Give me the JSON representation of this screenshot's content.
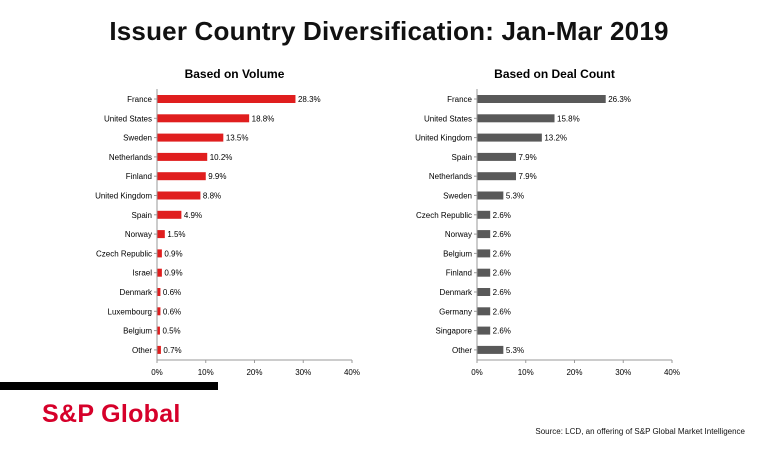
{
  "title": "Issuer Country Diversification: Jan-Mar 2019",
  "colors": {
    "volume_bar": "#e01e1e",
    "deal_bar": "#595959",
    "brand": "#d6002a"
  },
  "brand": {
    "name": "S&P Global"
  },
  "source": "Source: LCD, an offering of S&P Global Market Intelligence",
  "chart_data": [
    {
      "type": "bar",
      "orientation": "horizontal",
      "title": "Based on Volume",
      "categories": [
        "France",
        "United States",
        "Sweden",
        "Netherlands",
        "Finland",
        "United Kingdom",
        "Spain",
        "Norway",
        "Czech Republic",
        "Israel",
        "Denmark",
        "Luxembourg",
        "Belgium",
        "Other"
      ],
      "values": [
        28.3,
        18.8,
        13.5,
        10.2,
        9.9,
        8.8,
        4.9,
        1.5,
        0.9,
        0.9,
        0.6,
        0.6,
        0.5,
        0.7
      ],
      "value_labels": [
        "28.3%",
        "18.8%",
        "13.5%",
        "10.2%",
        "9.9%",
        "8.8%",
        "4.9%",
        "1.5%",
        "0.9%",
        "0.9%",
        "0.6%",
        "0.6%",
        "0.5%",
        "0.7%"
      ],
      "xlim": [
        0,
        40
      ],
      "xticks": [
        0,
        10,
        20,
        30,
        40
      ],
      "xtick_labels": [
        "0%",
        "10%",
        "20%",
        "30%",
        "40%"
      ],
      "grid": false,
      "color": "#e01e1e"
    },
    {
      "type": "bar",
      "orientation": "horizontal",
      "title": "Based on Deal Count",
      "categories": [
        "France",
        "United States",
        "United Kingdom",
        "Spain",
        "Netherlands",
        "Sweden",
        "Czech Republic",
        "Norway",
        "Belgium",
        "Finland",
        "Denmark",
        "Germany",
        "Singapore",
        "Other"
      ],
      "values": [
        26.3,
        15.8,
        13.2,
        7.9,
        7.9,
        5.3,
        2.6,
        2.6,
        2.6,
        2.6,
        2.6,
        2.6,
        2.6,
        5.3
      ],
      "value_labels": [
        "26.3%",
        "15.8%",
        "13.2%",
        "7.9%",
        "7.9%",
        "5.3%",
        "2.6%",
        "2.6%",
        "2.6%",
        "2.6%",
        "2.6%",
        "2.6%",
        "2.6%",
        "5.3%"
      ],
      "xlim": [
        0,
        40
      ],
      "xticks": [
        0,
        10,
        20,
        30,
        40
      ],
      "xtick_labels": [
        "0%",
        "10%",
        "20%",
        "30%",
        "40%"
      ],
      "grid": false,
      "color": "#595959"
    }
  ]
}
